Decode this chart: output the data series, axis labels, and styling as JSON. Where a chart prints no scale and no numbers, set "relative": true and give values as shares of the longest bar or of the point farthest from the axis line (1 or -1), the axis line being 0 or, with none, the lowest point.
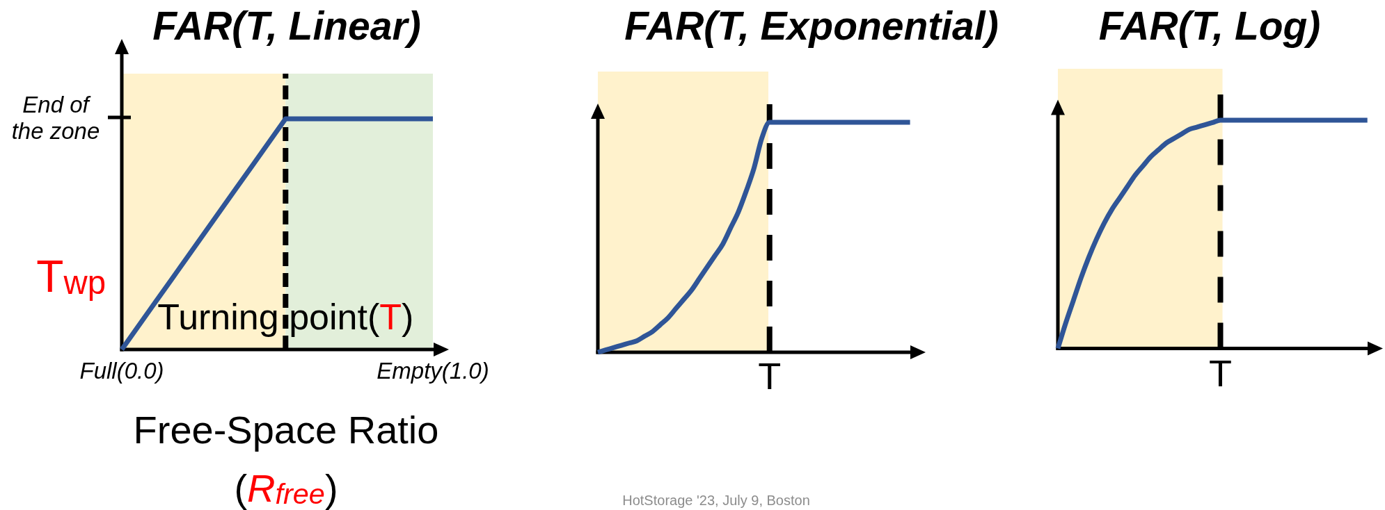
{
  "chart_data": [
    {
      "type": "line",
      "title": "FAR(T, Linear)",
      "xlabel": "Free-Space Ratio\n(R$_{free}$)",
      "ylabel": "T$_{wp}$",
      "relative": true,
      "categories": [
        "Full(0.0)",
        null,
        null,
        null,
        null,
        null,
        null,
        null,
        null,
        null,
        null,
        null,
        null,
        null,
        null,
        null,
        null,
        null,
        null,
        "Empty(1.0)"
      ],
      "series": [
        {
          "color": "#2f5597",
          "values": [
            0,
            0.1,
            0.2,
            0.3,
            0.4,
            0.5,
            0.6,
            0.7,
            0.8,
            0.9,
            1,
            1,
            1,
            1,
            1,
            1,
            1,
            1,
            1,
            1
          ]
        }
      ],
      "annotations": [
        "End of the zone",
        "Turning point(T)"
      ]
    },
    {
      "type": "line",
      "title": "FAR(T, Exponential)",
      "relative": true,
      "categories": [
        null,
        null,
        null,
        null,
        null,
        null,
        null,
        null,
        null,
        null,
        null,
        null,
        null,
        null,
        null,
        null,
        null,
        null,
        null,
        null,
        null,
        null,
        null,
        null,
        null,
        null,
        null,
        null,
        null,
        null,
        null,
        null,
        null,
        null,
        null,
        null,
        null,
        null,
        null,
        null,
        null
      ],
      "series": [
        {
          "color": "#2f5597",
          "values": [
            0,
            0.01,
            0.02,
            0.03,
            0.04,
            0.05,
            0.07,
            0.09,
            0.12,
            0.15,
            0.19,
            0.23,
            0.27,
            0.32,
            0.37,
            0.42,
            0.47,
            0.54,
            0.61,
            0.7,
            0.8,
            0.93,
            1,
            1,
            1,
            1,
            1,
            1,
            1,
            1,
            1,
            1,
            1,
            1,
            1,
            1,
            1,
            1,
            1,
            1,
            1
          ]
        }
      ],
      "annotations": [
        "T",
        "HotStorage '23, July 9, Boston"
      ]
    },
    {
      "type": "line",
      "title": "FAR(T, Log)",
      "relative": true,
      "categories": [
        null,
        null,
        null,
        null,
        null,
        null,
        null,
        null,
        null,
        null,
        null,
        null,
        null,
        null,
        null,
        null,
        null,
        null,
        null,
        null,
        null,
        null,
        null,
        null,
        null,
        null,
        null,
        null,
        null,
        null,
        null,
        null,
        null,
        null,
        null,
        null,
        null,
        null,
        null,
        null,
        null
      ],
      "series": [
        {
          "color": "#2f5597",
          "values": [
            0,
            0.11,
            0.21,
            0.31,
            0.4,
            0.48,
            0.55,
            0.61,
            0.66,
            0.71,
            0.76,
            0.8,
            0.84,
            0.87,
            0.9,
            0.92,
            0.94,
            0.96,
            0.97,
            0.98,
            0.99,
            1,
            1,
            1,
            1,
            1,
            1,
            1,
            1,
            1,
            1,
            1,
            1,
            1,
            1,
            1,
            1,
            1,
            1,
            1,
            1
          ]
        }
      ],
      "annotations": [
        "T"
      ]
    }
  ]
}
